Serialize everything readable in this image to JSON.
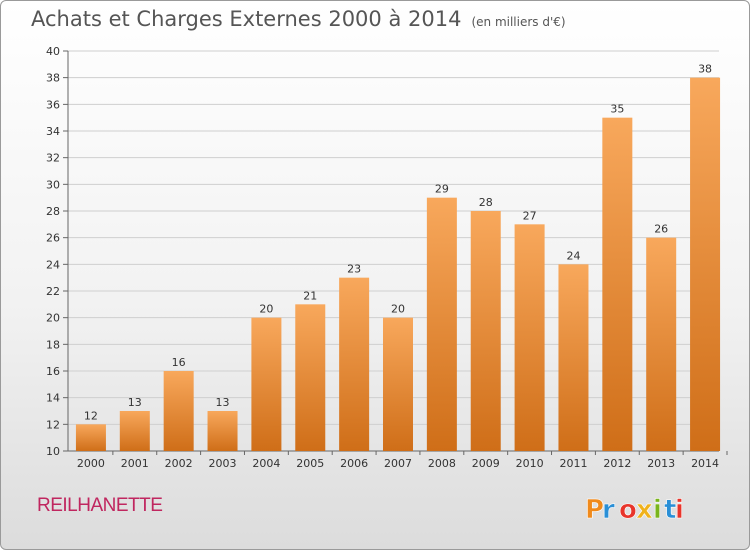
{
  "title": "Achats et Charges Externes 2000 à 2014",
  "subtitle": "(en milliers d'€)",
  "place": "REILHANETTE",
  "logo": {
    "text": "Proxiti",
    "colors": [
      "#f08a1c",
      "#2a8fd6",
      "#e8352b",
      "#f0b21c",
      "#7ab51d",
      "#2a8fd6",
      "#e8352b"
    ]
  },
  "colors": {
    "bar_light": "#f8a85c",
    "bar_dark": "#cf6e18",
    "grid": "#cfcfcf",
    "text": "#555555"
  },
  "chart_data": {
    "type": "bar",
    "title": "Achats et Charges Externes 2000 à 2014",
    "subtitle": "(en milliers d'€)",
    "xlabel": "",
    "ylabel": "",
    "categories": [
      "2000",
      "2001",
      "2002",
      "2003",
      "2004",
      "2005",
      "2006",
      "2007",
      "2008",
      "2009",
      "2010",
      "2011",
      "2012",
      "2013",
      "2014"
    ],
    "values": [
      12,
      13,
      16,
      13,
      20,
      21,
      23,
      20,
      29,
      28,
      27,
      24,
      35,
      26,
      38
    ],
    "ylim": [
      10,
      40
    ],
    "yticks": [
      10,
      12,
      14,
      16,
      18,
      20,
      22,
      24,
      26,
      28,
      30,
      32,
      34,
      36,
      38,
      40
    ],
    "grid": true,
    "data_labels": true
  }
}
